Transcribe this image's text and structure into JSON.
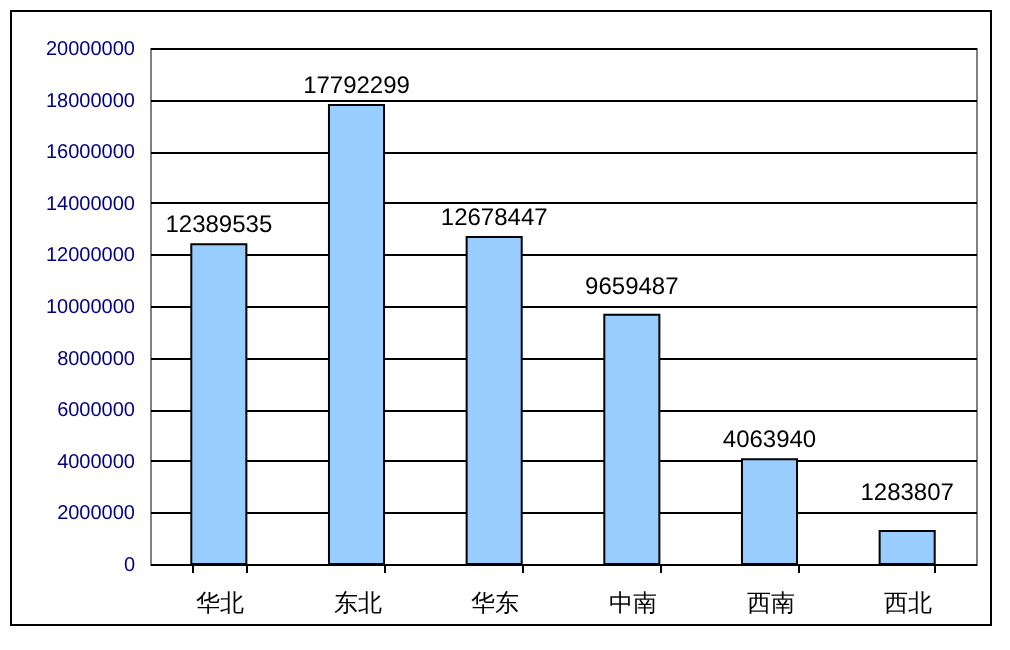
{
  "chart_data": {
    "type": "bar",
    "categories": [
      "华北",
      "东北",
      "华东",
      "中南",
      "西南",
      "西北"
    ],
    "values": [
      12389535,
      17792299,
      12678447,
      9659487,
      4063940,
      1283807
    ],
    "color": "#99ccff",
    "ylim": [
      0,
      20000000
    ],
    "yticks": [
      0,
      2000000,
      4000000,
      6000000,
      8000000,
      10000000,
      12000000,
      14000000,
      16000000,
      18000000,
      20000000
    ],
    "grid": "y",
    "data_labels": true
  }
}
